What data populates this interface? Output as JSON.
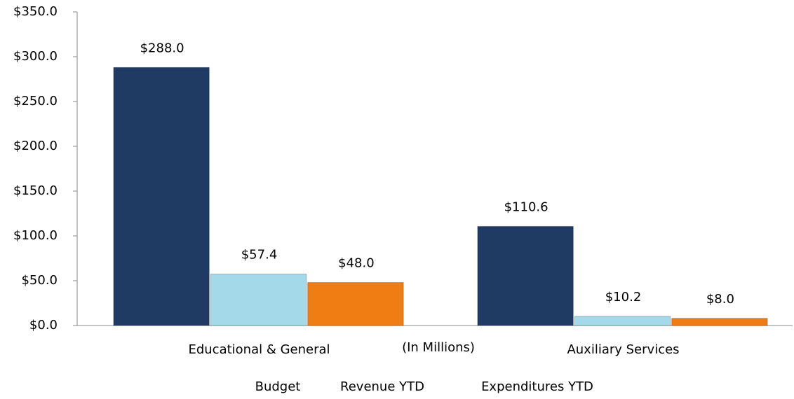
{
  "chart_data": {
    "type": "bar",
    "x_label": "(In Millions)",
    "categories": [
      "Educational & General",
      "Auxiliary Services"
    ],
    "series": [
      {
        "name": "Budget",
        "color": "#1f3b63",
        "values": [
          288.0,
          110.6
        ],
        "value_labels": [
          "$288.0",
          "$110.6"
        ]
      },
      {
        "name": "Revenue YTD",
        "color": "#a4d9ea",
        "values": [
          57.4,
          10.2
        ],
        "value_labels": [
          "$57.4",
          "$10.2"
        ]
      },
      {
        "name": "Expenditures YTD",
        "color": "#f07c14",
        "values": [
          48.0,
          8.0
        ],
        "value_labels": [
          "$48.0",
          "$8.0"
        ]
      }
    ],
    "ylim": [
      0,
      350
    ],
    "yticks": [
      {
        "value": 0,
        "label": "$0.0"
      },
      {
        "value": 50,
        "label": "$50.0"
      },
      {
        "value": 100,
        "label": "$100.0"
      },
      {
        "value": 150,
        "label": "$150.0"
      },
      {
        "value": 200,
        "label": "$200.0"
      },
      {
        "value": 250,
        "label": "$250.0"
      },
      {
        "value": 300,
        "label": "$300.0"
      },
      {
        "value": 350,
        "label": "$350.0"
      }
    ],
    "grid": false,
    "legend": "bottom"
  }
}
